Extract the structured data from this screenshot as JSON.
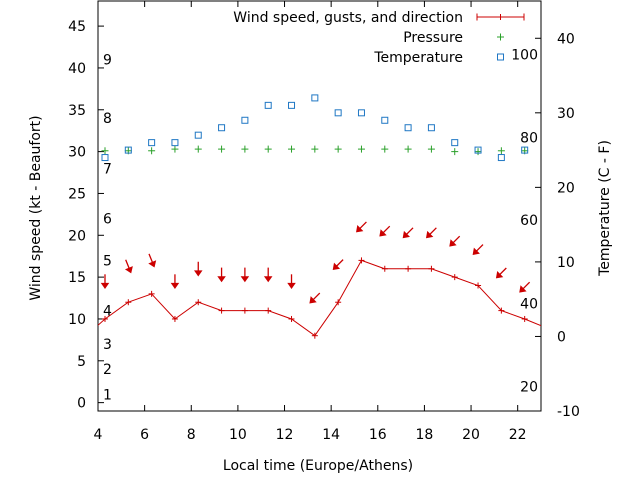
{
  "colors": {
    "wind": "#cc0000",
    "pressure": "#2aa02a",
    "temperature": "#1f77c4",
    "axis": "#000000"
  },
  "chart_data": {
    "type": "line",
    "xlabel": "Local time (Europe/Athens)",
    "ylabel_left": "Wind speed (kt - Beaufort)",
    "ylabel_right": "Temperature (C - F)",
    "xlim": [
      4,
      23
    ],
    "ylim_left": [
      -1,
      48
    ],
    "ylim_right": [
      -10,
      45
    ],
    "x_ticks": [
      4,
      6,
      8,
      10,
      12,
      14,
      16,
      18,
      20,
      22
    ],
    "y_left_ticks": [
      0,
      5,
      10,
      15,
      20,
      25,
      30,
      35,
      40,
      45
    ],
    "y_right_ticks": [
      -10,
      0,
      10,
      20,
      30,
      40
    ],
    "beaufort_labels": [
      {
        "label": "1",
        "y": 1
      },
      {
        "label": "2",
        "y": 4
      },
      {
        "label": "3",
        "y": 7
      },
      {
        "label": "4",
        "y": 11
      },
      {
        "label": "5",
        "y": 17
      },
      {
        "label": "6",
        "y": 22
      },
      {
        "label": "7",
        "y": 28
      },
      {
        "label": "8",
        "y": 34
      },
      {
        "label": "9",
        "y": 41
      }
    ],
    "fahrenheit_labels": [
      {
        "label": "20",
        "y": -6.7
      },
      {
        "label": "40",
        "y": 4.4
      },
      {
        "label": "60",
        "y": 15.6
      },
      {
        "label": "80",
        "y": 26.7
      },
      {
        "label": "100",
        "y": 37.8
      }
    ],
    "legend_position": "top-right",
    "series": [
      {
        "name": "Wind speed, gusts, and direction",
        "axis": "left",
        "style": "line+points",
        "x": [
          3.5,
          4.3,
          5.3,
          6.3,
          7.3,
          8.3,
          9.3,
          10.3,
          11.3,
          12.3,
          13.3,
          14.3,
          15.3,
          16.3,
          17.3,
          18.3,
          19.3,
          20.3,
          21.3,
          22.3,
          23.0
        ],
        "y": [
          8,
          10,
          12,
          13,
          10,
          12,
          11,
          11,
          11,
          10,
          8,
          12,
          17,
          16,
          16,
          16,
          15,
          14,
          11,
          10,
          9.2
        ]
      },
      {
        "name": "Pressure",
        "axis": "left",
        "style": "points-plus",
        "x": [
          4.3,
          5.3,
          6.3,
          7.3,
          8.3,
          9.3,
          10.3,
          11.3,
          12.3,
          13.3,
          14.3,
          15.3,
          16.3,
          17.3,
          18.3,
          19.3,
          20.3,
          21.3,
          22.3
        ],
        "y": [
          30.1,
          30.1,
          30.1,
          30.3,
          30.3,
          30.3,
          30.3,
          30.3,
          30.3,
          30.3,
          30.3,
          30.3,
          30.3,
          30.3,
          30.3,
          30.0,
          30.0,
          30.1,
          30.1
        ]
      },
      {
        "name": "Temperature",
        "axis": "right",
        "style": "points-square",
        "x": [
          4.3,
          5.3,
          6.3,
          7.3,
          8.3,
          9.3,
          10.3,
          11.3,
          12.3,
          13.3,
          14.3,
          15.3,
          16.3,
          17.3,
          18.3,
          19.3,
          20.3,
          21.3,
          22.3
        ],
        "y": [
          24,
          25,
          26,
          26,
          27,
          28,
          29,
          31,
          31,
          32,
          30,
          30,
          29,
          28,
          28,
          26,
          25,
          24,
          25
        ]
      }
    ],
    "wind_direction_arrows": [
      {
        "x": 4.3,
        "y": 14.5,
        "dir": "S"
      },
      {
        "x": 5.3,
        "y": 16.3,
        "dir": "SSW"
      },
      {
        "x": 6.3,
        "y": 17.0,
        "dir": "SSW"
      },
      {
        "x": 7.3,
        "y": 14.5,
        "dir": "S"
      },
      {
        "x": 8.3,
        "y": 16.0,
        "dir": "S"
      },
      {
        "x": 9.3,
        "y": 15.3,
        "dir": "S"
      },
      {
        "x": 10.3,
        "y": 15.3,
        "dir": "S"
      },
      {
        "x": 11.3,
        "y": 15.3,
        "dir": "S"
      },
      {
        "x": 12.3,
        "y": 14.5,
        "dir": "S"
      },
      {
        "x": 13.3,
        "y": 12.5,
        "dir": "SE"
      },
      {
        "x": 14.3,
        "y": 16.5,
        "dir": "SE"
      },
      {
        "x": 15.3,
        "y": 21.0,
        "dir": "SE"
      },
      {
        "x": 16.3,
        "y": 20.5,
        "dir": "SE"
      },
      {
        "x": 17.3,
        "y": 20.3,
        "dir": "SE"
      },
      {
        "x": 18.3,
        "y": 20.3,
        "dir": "SE"
      },
      {
        "x": 19.3,
        "y": 19.3,
        "dir": "SE"
      },
      {
        "x": 20.3,
        "y": 18.3,
        "dir": "SE"
      },
      {
        "x": 21.3,
        "y": 15.5,
        "dir": "SE"
      },
      {
        "x": 22.3,
        "y": 13.8,
        "dir": "SE"
      }
    ]
  }
}
